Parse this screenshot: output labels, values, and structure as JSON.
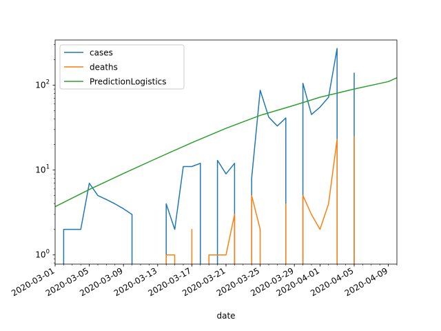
{
  "chart_data": {
    "type": "line",
    "xlabel": "date",
    "ylabel": "",
    "yscale": "log",
    "ylim": [
      0.78,
      340
    ],
    "xlim": [
      "2020-03-01",
      "2020-04-10"
    ],
    "grid": false,
    "legend_position": "top-left",
    "x_ticks": [
      "2020-03-01",
      "2020-03-05",
      "2020-03-09",
      "2020-03-13",
      "2020-03-17",
      "2020-03-21",
      "2020-03-25",
      "2020-03-29",
      "2020-04-01",
      "2020-04-05",
      "2020-04-09"
    ],
    "y_ticks": [
      {
        "value": 1,
        "base": "10",
        "exp": "0"
      },
      {
        "value": 10,
        "base": "10",
        "exp": "1"
      },
      {
        "value": 100,
        "base": "10",
        "exp": "2"
      }
    ],
    "series": [
      {
        "name": "cases",
        "color": "#1f77b4",
        "points": [
          [
            "2020-03-02",
            0.5
          ],
          [
            "2020-03-02",
            2
          ],
          [
            "2020-03-03",
            2
          ],
          [
            "2020-03-04",
            2
          ],
          [
            "2020-03-05",
            7
          ],
          [
            "2020-03-06",
            5
          ],
          [
            "2020-03-07",
            4.5
          ],
          [
            "2020-03-08",
            4
          ],
          [
            "2020-03-09",
            3.5
          ],
          [
            "2020-03-10",
            3
          ],
          [
            "2020-03-10",
            0.5
          ],
          null,
          [
            "2020-03-14",
            0.5
          ],
          [
            "2020-03-14",
            4
          ],
          [
            "2020-03-15",
            2
          ],
          [
            "2020-03-16",
            11
          ],
          [
            "2020-03-17",
            11
          ],
          [
            "2020-03-18",
            12
          ],
          [
            "2020-03-18",
            0.5
          ],
          null,
          [
            "2020-03-20",
            0.5
          ],
          [
            "2020-03-20",
            13
          ],
          [
            "2020-03-21",
            9
          ],
          [
            "2020-03-22",
            12
          ],
          [
            "2020-03-22",
            0.5
          ],
          null,
          [
            "2020-03-24",
            0.5
          ],
          [
            "2020-03-24",
            8
          ],
          [
            "2020-03-25",
            87
          ],
          [
            "2020-03-26",
            42
          ],
          [
            "2020-03-27",
            33
          ],
          [
            "2020-03-28",
            41
          ],
          [
            "2020-03-28",
            0.5
          ],
          null,
          [
            "2020-03-30",
            0.5
          ],
          [
            "2020-03-30",
            105
          ],
          [
            "2020-03-31",
            45
          ],
          [
            "2020-04-01",
            55
          ],
          [
            "2020-04-02",
            72
          ],
          [
            "2020-04-03",
            270
          ],
          [
            "2020-04-03",
            0.5
          ],
          null,
          [
            "2020-04-05",
            0.5
          ],
          [
            "2020-04-05",
            140
          ]
        ]
      },
      {
        "name": "deaths",
        "color": "#ff7f0e",
        "points": [
          [
            "2020-03-14",
            0.5
          ],
          [
            "2020-03-14",
            1
          ],
          [
            "2020-03-15",
            1
          ],
          [
            "2020-03-15",
            0.5
          ],
          null,
          [
            "2020-03-17",
            0.5
          ],
          [
            "2020-03-17",
            2
          ],
          [
            "2020-03-17",
            0.5
          ],
          null,
          [
            "2020-03-19",
            0.5
          ],
          [
            "2020-03-19",
            1
          ],
          [
            "2020-03-20",
            1
          ],
          [
            "2020-03-21",
            1
          ],
          [
            "2020-03-22",
            3
          ],
          [
            "2020-03-22",
            0.5
          ],
          null,
          [
            "2020-03-24",
            0.5
          ],
          [
            "2020-03-24",
            5
          ],
          [
            "2020-03-25",
            2
          ],
          [
            "2020-03-25",
            0.5
          ],
          null,
          [
            "2020-03-28",
            0.5
          ],
          [
            "2020-03-28",
            4
          ],
          [
            "2020-03-28",
            0.5
          ],
          null,
          [
            "2020-03-30",
            0.5
          ],
          [
            "2020-03-30",
            5
          ],
          [
            "2020-03-31",
            3
          ],
          [
            "2020-04-01",
            2
          ],
          [
            "2020-04-02",
            4
          ],
          [
            "2020-04-03",
            23
          ],
          [
            "2020-04-03",
            0.5
          ],
          null,
          [
            "2020-04-05",
            0.5
          ],
          [
            "2020-04-05",
            25
          ]
        ]
      },
      {
        "name": "PredictionLogistics",
        "color": "#2ca02c",
        "points": [
          [
            "2020-03-01",
            3.7
          ],
          [
            "2020-03-05",
            5.9
          ],
          [
            "2020-03-09",
            9.1
          ],
          [
            "2020-03-13",
            13.9
          ],
          [
            "2020-03-17",
            21
          ],
          [
            "2020-03-21",
            31
          ],
          [
            "2020-03-25",
            44
          ],
          [
            "2020-03-29",
            58
          ],
          [
            "2020-04-01",
            72
          ],
          [
            "2020-04-05",
            90
          ],
          [
            "2020-04-09",
            110
          ],
          [
            "2020-04-10",
            122
          ]
        ]
      }
    ]
  }
}
